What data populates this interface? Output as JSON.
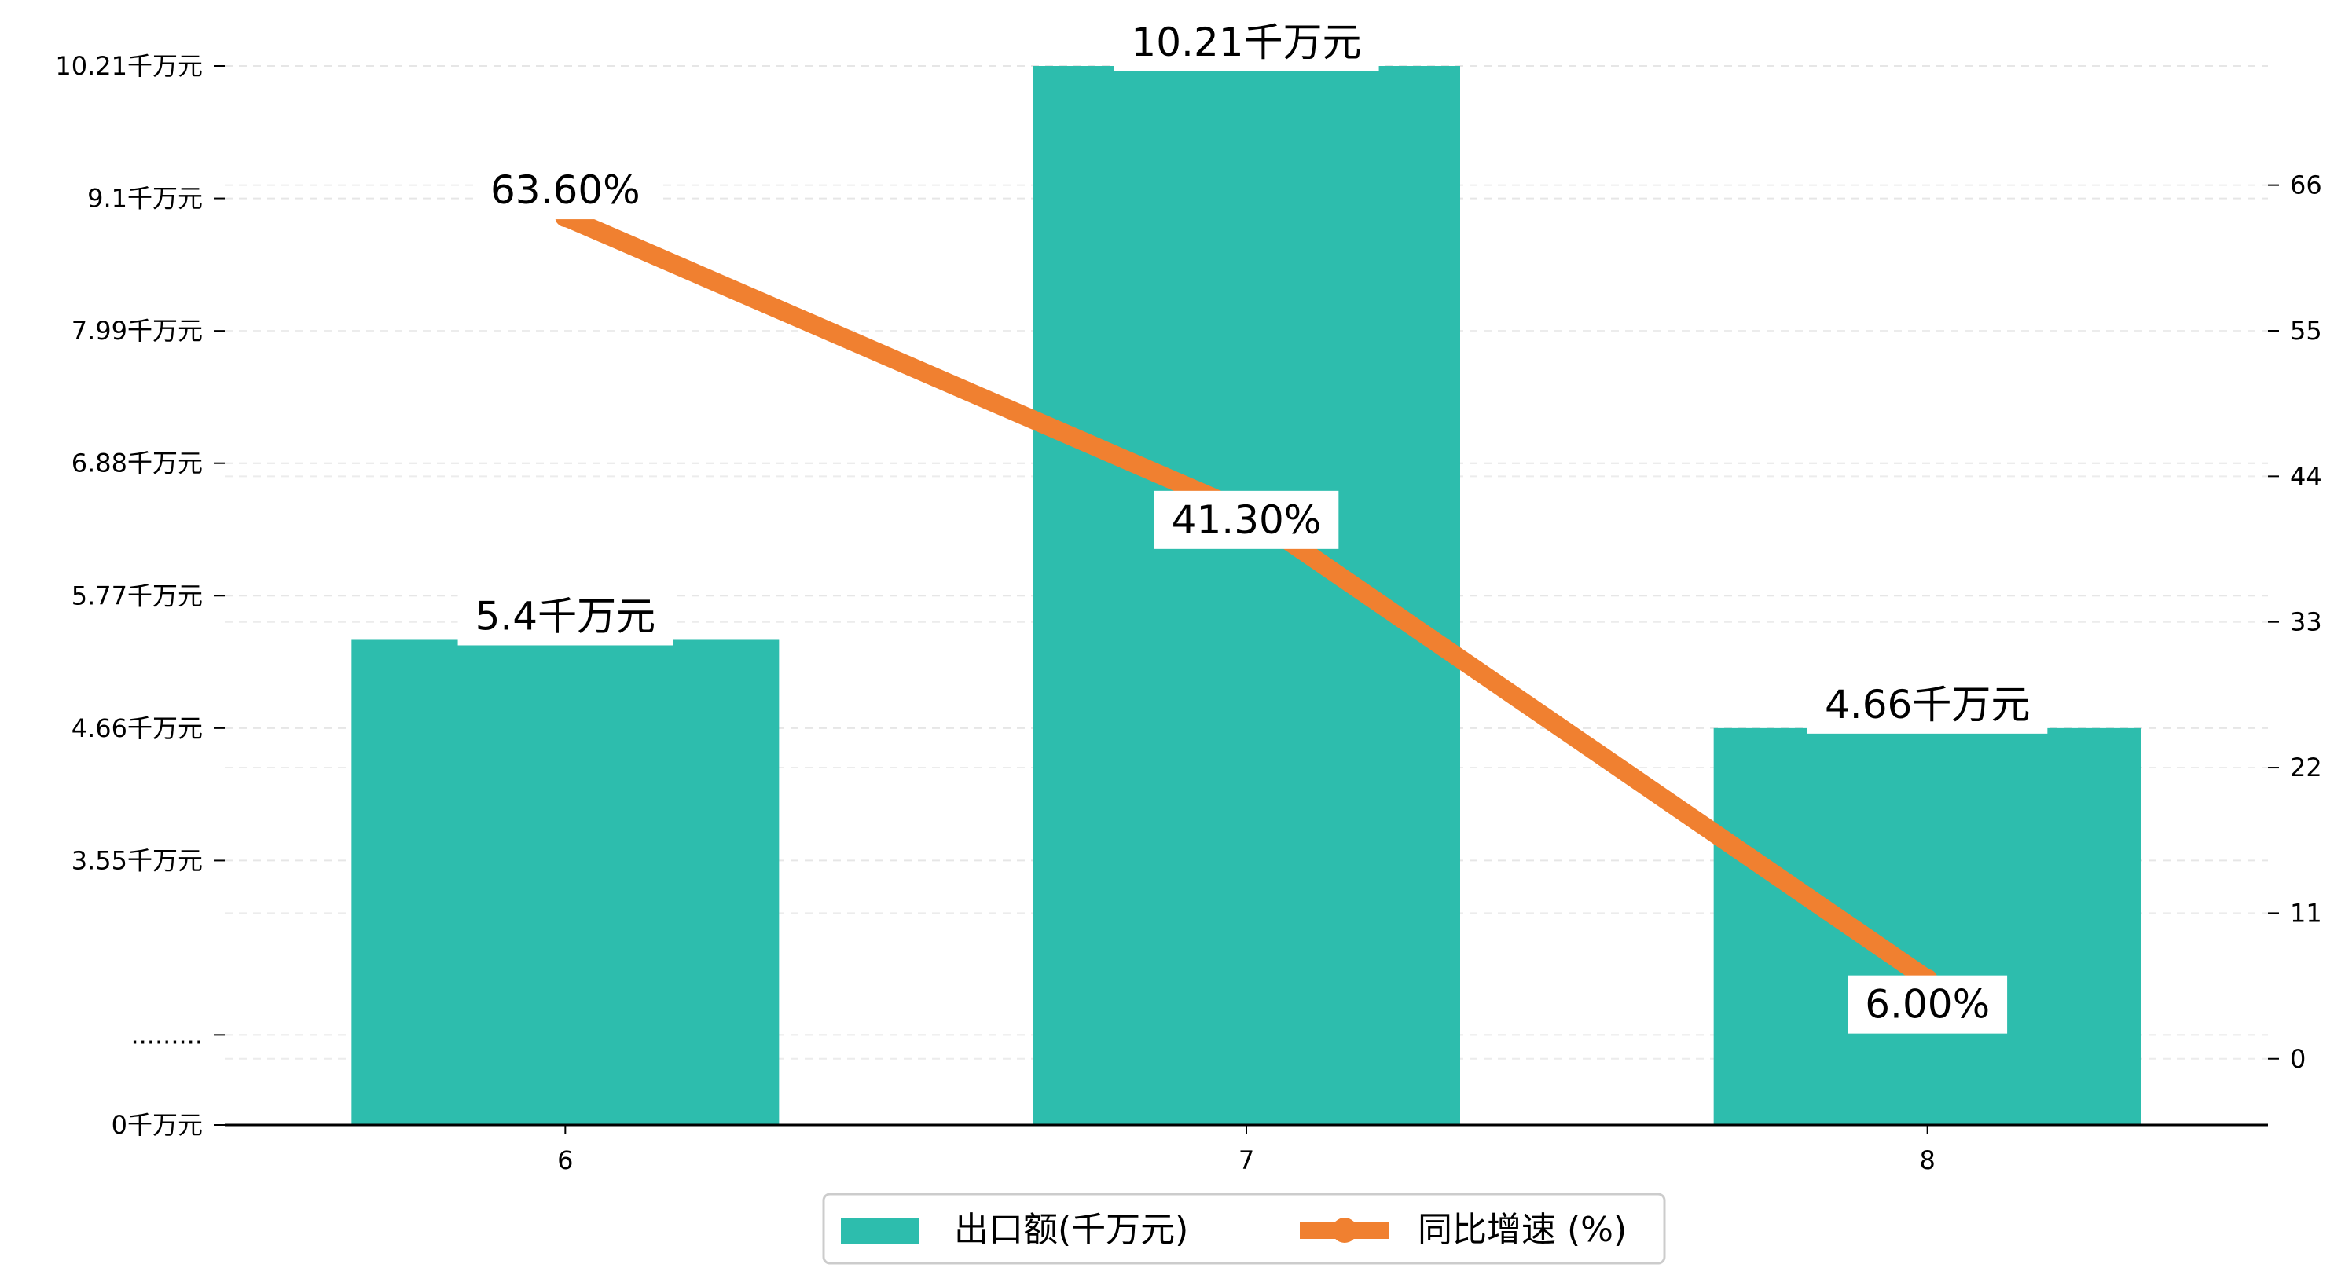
{
  "chart_data": {
    "type": "bar",
    "title": "",
    "xlabel": "",
    "ylabel": "",
    "categories": [
      "6",
      "7",
      "8"
    ],
    "series": [
      {
        "name": "出口额(千万元)",
        "type": "bar",
        "axis": "left",
        "color": "#2dbdad",
        "values": [
          5.4,
          10.21,
          4.66
        ],
        "labels": [
          "5.4千万元",
          "10.21千万元",
          "4.66千万元"
        ]
      },
      {
        "name": "同比增速 (%)",
        "type": "line",
        "axis": "right",
        "color": "#f08030",
        "values": [
          63.6,
          41.3,
          6.0
        ],
        "labels": [
          "63.60%",
          "41.30%",
          "6.00%"
        ]
      }
    ],
    "y_left": {
      "ticks": [
        {
          "value": 0,
          "label": "0千万元"
        },
        {
          "value": 1.665,
          "label": "........."
        },
        {
          "value": 3.55,
          "label": "3.55千万元"
        },
        {
          "value": 4.66,
          "label": "4.66千万元"
        },
        {
          "value": 5.77,
          "label": "5.77千万元"
        },
        {
          "value": 6.88,
          "label": "6.88千万元"
        },
        {
          "value": 7.99,
          "label": "7.99千万元"
        },
        {
          "value": 9.1,
          "label": "9.1千万元"
        },
        {
          "value": 10.21,
          "label": "10.21千万元"
        }
      ],
      "break": [
        0,
        2.44
      ]
    },
    "y_right": {
      "ticks": [
        0,
        11,
        22,
        33,
        44,
        55,
        66
      ],
      "ylim": [
        -5,
        75
      ]
    },
    "grid": true,
    "legend_position": "bottom-center"
  }
}
